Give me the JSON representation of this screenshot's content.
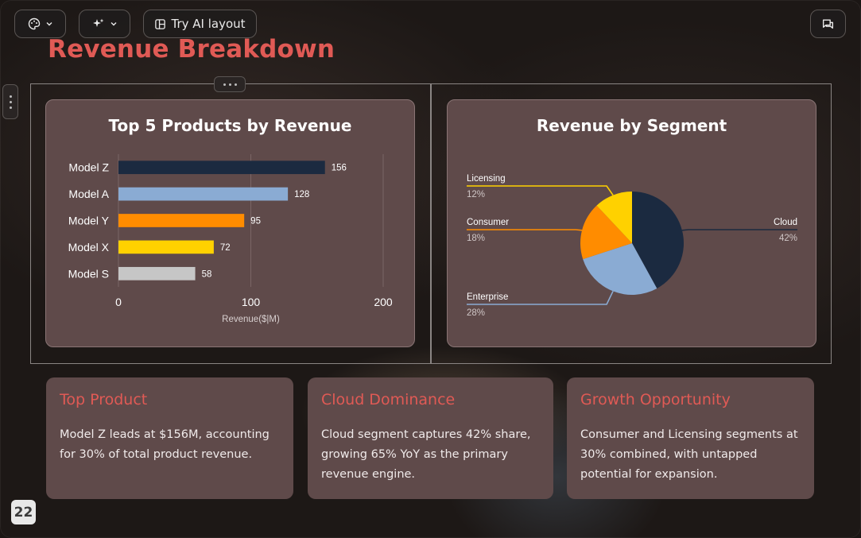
{
  "toolbar": {
    "theme_icon": "palette-icon",
    "ai_icon": "sparkles-icon",
    "layout_icon": "layout-icon",
    "layout_label": "Try AI layout",
    "comments_icon": "comments-icon"
  },
  "page": {
    "title": "Revenue Breakdown",
    "number": "22"
  },
  "chart_data": [
    {
      "type": "bar",
      "orientation": "horizontal",
      "title": "Top 5 Products by Revenue",
      "categories": [
        "Model Z",
        "Model A",
        "Model Y",
        "Model X",
        "Model S"
      ],
      "values": [
        156,
        128,
        95,
        72,
        58
      ],
      "colors": [
        "#1b2a40",
        "#8aabd3",
        "#ff8c00",
        "#ffd100",
        "#c6c6c6"
      ],
      "xlabel": "Revenue($|M)",
      "ylabel": "",
      "xlim": [
        0,
        200
      ],
      "xticks": [
        "0",
        "100",
        "200"
      ],
      "grid": true,
      "data_labels": true
    },
    {
      "type": "pie",
      "title": "Revenue by Segment",
      "labels": [
        "Cloud",
        "Enterprise",
        "Consumer",
        "Licensing"
      ],
      "values": [
        42,
        28,
        18,
        12
      ],
      "percent_labels": [
        "42%",
        "28%",
        "18%",
        "12%"
      ],
      "colors": [
        "#1b2a40",
        "#8aabd3",
        "#ff8c00",
        "#ffd100"
      ]
    }
  ],
  "cards": [
    {
      "title": "Top Product",
      "body": "Model Z leads at $156M, accounting for 30% of total product revenue."
    },
    {
      "title": "Cloud Dominance",
      "body": "Cloud segment captures 42% share, growing 65% YoY as the primary revenue engine."
    },
    {
      "title": "Growth Opportunity",
      "body": "Consumer and Licensing segments at 30% combined, with untapped potential for expansion."
    }
  ],
  "colors": {
    "accent": "#e05a55",
    "card_background": "#5f4a4a"
  }
}
